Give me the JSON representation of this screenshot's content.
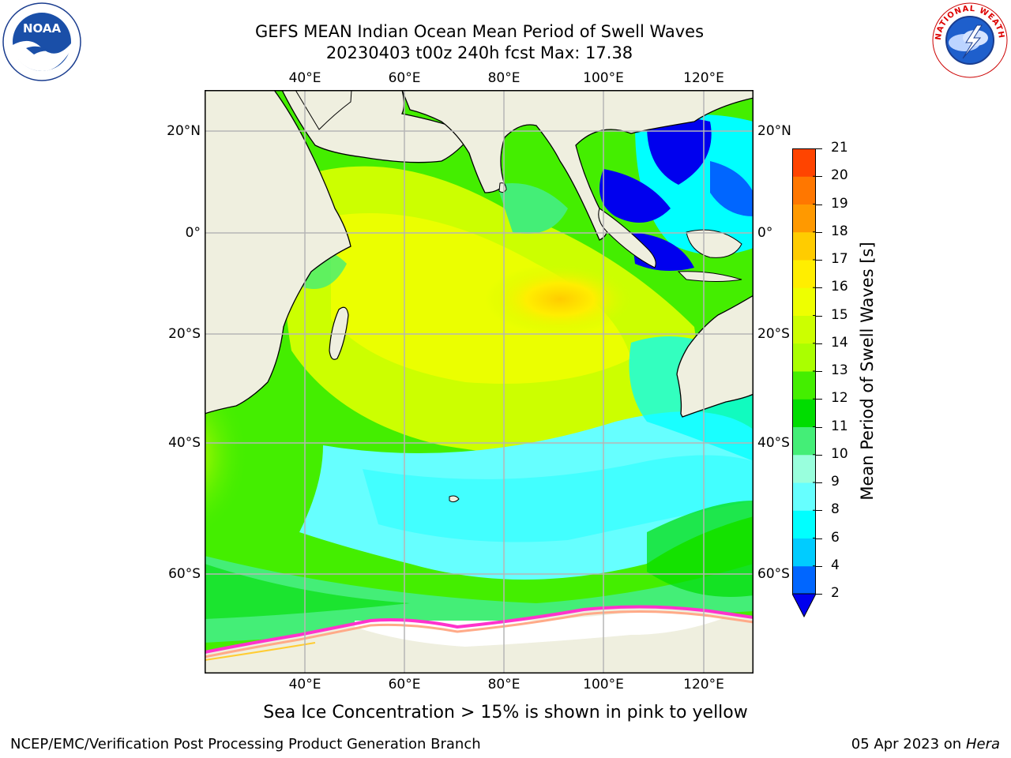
{
  "title_line1": "GEFS MEAN Indian Ocean Mean Period of Swell Waves",
  "title_line2": "20230403 t00z 240h fcst   Max: 17.38",
  "logos": {
    "left": "NOAA",
    "right": "NATIONAL WEATHER SERVICE"
  },
  "map": {
    "projection": "plate-carree",
    "lon_range": [
      20,
      130
    ],
    "lat_range": [
      -75,
      28
    ],
    "grid": true,
    "lon_ticks": [
      "40°E",
      "60°E",
      "80°E",
      "100°E",
      "120°E"
    ],
    "lat_ticks": [
      "20°N",
      "0°",
      "20°S",
      "40°S",
      "60°S"
    ],
    "max_period_region": "central Indian Ocean ~90°E 15°S"
  },
  "colorbar": {
    "title": "Mean Period of Swell Waves [s]",
    "ticks": [
      "2",
      "4",
      "6",
      "8",
      "9",
      "10",
      "11",
      "12",
      "13",
      "14",
      "15",
      "16",
      "17",
      "18",
      "19",
      "20",
      "21"
    ],
    "colors": [
      "#0066ff",
      "#00ccff",
      "#00ffff",
      "#66ffff",
      "#99ffdd",
      "#44ee77",
      "#00dd00",
      "#44ee00",
      "#aaff00",
      "#ccff00",
      "#eeff00",
      "#ffee00",
      "#ffcc00",
      "#ff9900",
      "#ff7700",
      "#ff4400",
      "#ff1100"
    ],
    "under_color": "#0000ee"
  },
  "note": "Sea Ice Concentration > 15% is shown in pink to yellow",
  "footer_left": "NCEP/EMC/Verification Post Processing Product Generation Branch",
  "footer_right_date": "05 Apr 2023 on ",
  "footer_right_machine": "Hera"
}
